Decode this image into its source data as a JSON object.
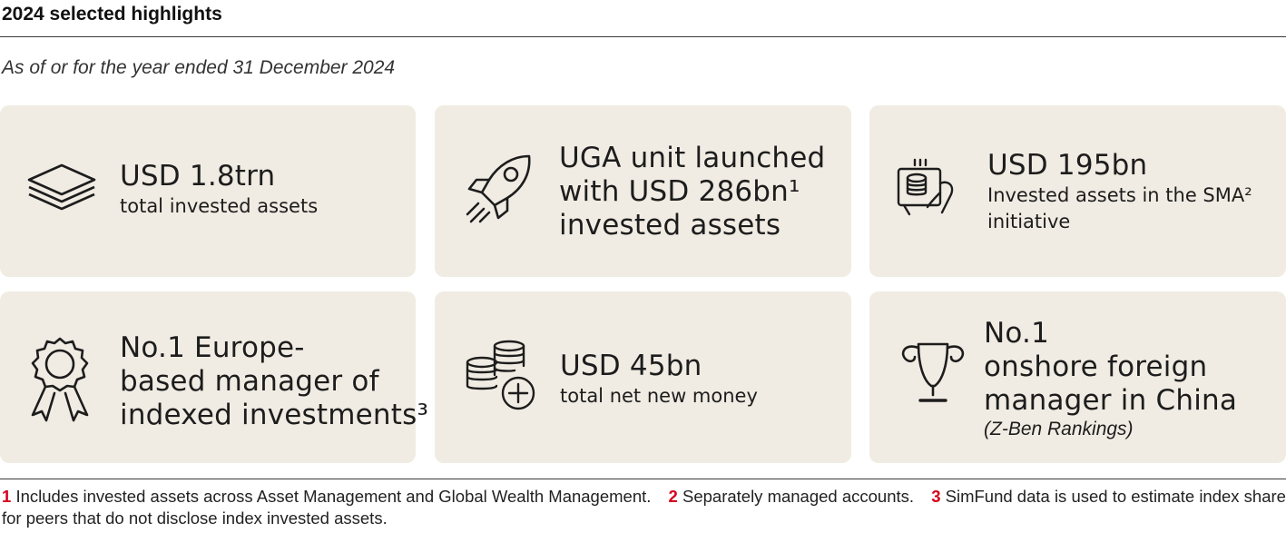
{
  "header": {
    "title": "2024 selected highlights",
    "subtitle": "As of or for the year ended 31 December 2024"
  },
  "cards": [
    {
      "icon": "layers-icon",
      "headline": "USD 1.8trn",
      "caption": "total invested assets"
    },
    {
      "icon": "rocket-icon",
      "headline_lines": [
        "UGA unit launched",
        "with USD 286bn¹",
        "invested assets"
      ]
    },
    {
      "icon": "device-coins-icon",
      "headline": "USD 195bn",
      "caption_lines": [
        "Invested assets in the SMA²",
        "initiative"
      ]
    },
    {
      "icon": "award-rosette-icon",
      "headline_lines": [
        "No.1 Europe-",
        "based manager of",
        "indexed investments³"
      ]
    },
    {
      "icon": "coins-plus-icon",
      "headline": "USD 45bn",
      "caption": "total net new money"
    },
    {
      "icon": "trophy-icon",
      "headline_lines": [
        "No.1",
        "onshore foreign",
        "manager in China"
      ],
      "note": "(Z-Ben Rankings)"
    }
  ],
  "footnotes": [
    {
      "num": "1",
      "text": "Includes invested assets across Asset Management and Global Wealth Management."
    },
    {
      "num": "2",
      "text": "Separately managed accounts."
    },
    {
      "num": "3",
      "text": "SimFund data is used to estimate index share for peers that do not disclose index invested assets."
    }
  ],
  "colors": {
    "card_bg": "#f1ece3",
    "footnote_number": "#d6001c",
    "text": "#1c1c1c"
  }
}
